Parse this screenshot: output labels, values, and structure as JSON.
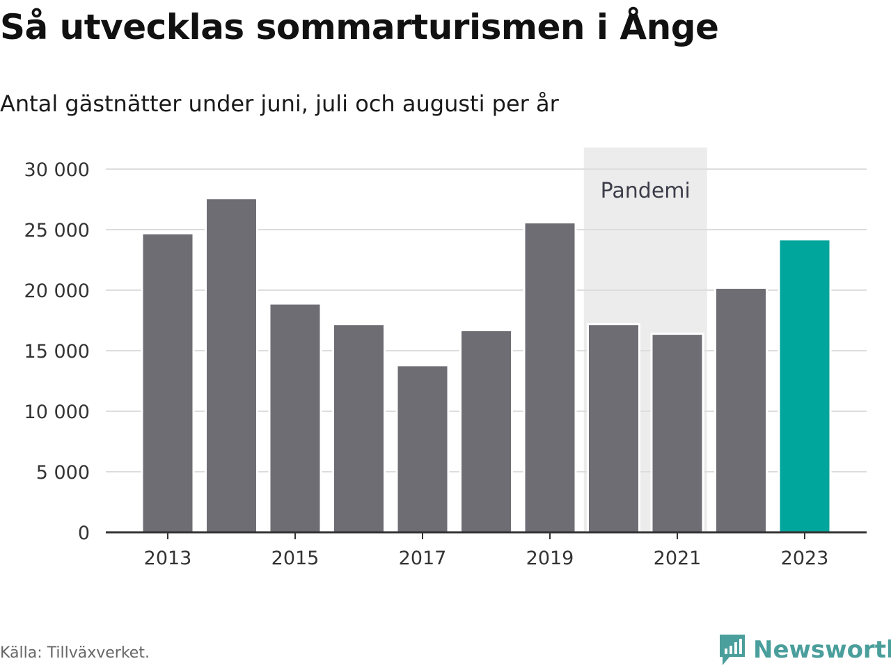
{
  "title": "Så utvecklas sommarturismen i Ånge",
  "subtitle": "Antal gästnätter under juni, juli och augusti per år",
  "source": "Källa: Tillväxverket.",
  "brand": {
    "name": "Newsworthy",
    "icon": "newsworthy-logo-icon",
    "color": "#4a9e9b"
  },
  "colors": {
    "bar": "#6e6d74",
    "highlight": "#00a59b",
    "band": "#ececec",
    "grid": "#dddddd",
    "axis": "#333333"
  },
  "chart_data": {
    "type": "bar",
    "categories": [
      "2013",
      "2014",
      "2015",
      "2016",
      "2017",
      "2018",
      "2019",
      "2020",
      "2021",
      "2022",
      "2023"
    ],
    "values": [
      24700,
      27600,
      18900,
      17200,
      13800,
      16700,
      25600,
      17200,
      16400,
      20200,
      24200
    ],
    "highlight": "2023",
    "x_tick_labels": [
      "2013",
      "2015",
      "2017",
      "2019",
      "2021",
      "2023"
    ],
    "y_tick_labels": [
      "0",
      "5 000",
      "10 000",
      "15 000",
      "20 000",
      "25 000",
      "30 000"
    ],
    "y_ticks": [
      0,
      5000,
      10000,
      15000,
      20000,
      25000,
      30000
    ],
    "ylim": [
      0,
      30000
    ],
    "grid": true,
    "annotations": [
      {
        "text": "Pandemi",
        "from": "2020",
        "to": "2021"
      }
    ]
  }
}
